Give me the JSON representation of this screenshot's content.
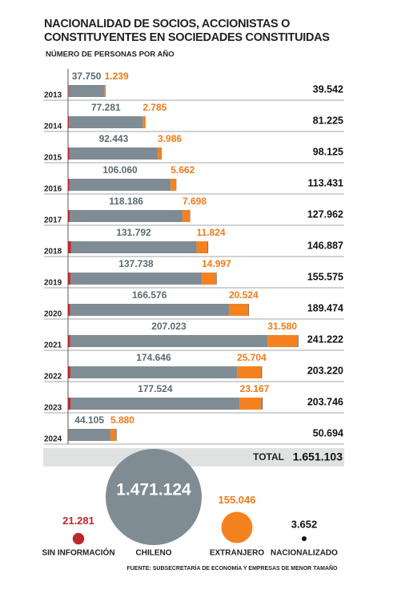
{
  "chart_data": {
    "type": "stacked-bar",
    "title": "NACIONALIDAD DE SOCIOS, ACCIONISTAS O CONSTITUYENTES EN SOCIEDADES CONSTITUIDAS",
    "subtitle": "NÚMERO DE PERSONAS POR AÑO",
    "categories": [
      "2013",
      "2014",
      "2015",
      "2016",
      "2017",
      "2018",
      "2019",
      "2020",
      "2021",
      "2022",
      "2023",
      "2024"
    ],
    "xlim": [
      0,
      250000
    ],
    "series": [
      {
        "name": "SIN INFORMACIÓN",
        "color": "#c0272d",
        "total": 21281,
        "total_label": "21.281",
        "values": [
          503,
          1059,
          1546,
          1509,
          1828,
          2921,
          2440,
          2024,
          2169,
          2420,
          2555,
          307
        ]
      },
      {
        "name": "CHILENO",
        "color": "#7f8c93",
        "total": 1471124,
        "total_label": "1.471.124",
        "values": [
          37750,
          77281,
          92443,
          106060,
          118186,
          131792,
          137738,
          166576,
          207023,
          174646,
          177524,
          44105
        ],
        "value_labels": [
          "37.750",
          "77.281",
          "92.443",
          "106.060",
          "118.186",
          "131.792",
          "137.738",
          "166.576",
          "207.023",
          "174.646",
          "177.524",
          "44.105"
        ]
      },
      {
        "name": "EXTRANJERO",
        "color": "#f58220",
        "total": 155046,
        "total_label": "155.046",
        "values": [
          1239,
          2785,
          3986,
          5662,
          7698,
          11824,
          14997,
          20524,
          31580,
          25704,
          23167,
          5880
        ],
        "value_labels": [
          "1.239",
          "2.785",
          "3.986",
          "5.662",
          "7.698",
          "11.824",
          "14.997",
          "20.524",
          "31.580",
          "25.704",
          "23.167",
          "5.880"
        ]
      },
      {
        "name": "NACIONALIZADO",
        "color": "#111111",
        "total": 3652,
        "total_label": "3.652",
        "values": [
          50,
          100,
          150,
          200,
          250,
          350,
          400,
          350,
          450,
          450,
          500,
          402
        ]
      }
    ],
    "totals": {
      "values": [
        39542,
        81225,
        98125,
        113431,
        127962,
        146887,
        155575,
        189474,
        241222,
        203220,
        203746,
        50694
      ],
      "value_labels": [
        "39.542",
        "81.225",
        "98.125",
        "113.431",
        "127.962",
        "146.887",
        "155.575",
        "189.474",
        "241.222",
        "203.220",
        "203.746",
        "50.694"
      ]
    },
    "total_label": "TOTAL",
    "grand_total": {
      "value": 1651103,
      "label": "1.651.103"
    },
    "source": "FUENTE: SUBSECRETARÍA DE ECONOMÍA Y EMPRESAS DE MENOR TAMAÑO"
  }
}
